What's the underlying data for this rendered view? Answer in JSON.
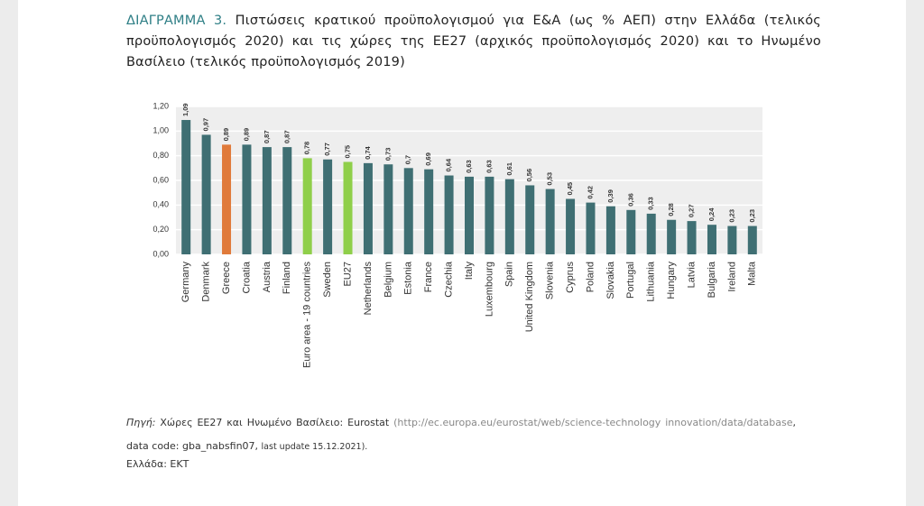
{
  "figure": {
    "label": "ΔΙΑΓΡΑΜΜΑ 3.",
    "title": "Πιστώσεις κρατικού προϋπολογισμού για Ε&Α (ως % ΑΕΠ) στην Ελλάδα (τελικός προϋπολογισμός 2020) και τις χώρες της ΕΕ27 (αρχικός προϋπολογισμός 2020) και το Ηνωμένο Βασίλειο (τελικός προϋπολογισμός 2019)"
  },
  "chart_data": {
    "type": "bar",
    "categories": [
      "Germany",
      "Denmark",
      "Greece",
      "Croatia",
      "Austria",
      "Finland",
      "Euro area - 19 countries",
      "Sweden",
      "EU27",
      "Netherlands",
      "Belgium",
      "Estonia",
      "France",
      "Czechia",
      "Italy",
      "Luxembourg",
      "Spain",
      "United Kingdom",
      "Slovenia",
      "Cyprus",
      "Poland",
      "Slovakia",
      "Portugal",
      "Lithuania",
      "Hungary",
      "Latvia",
      "Bulgaria",
      "Ireland",
      "Malta"
    ],
    "values": [
      1.09,
      0.97,
      0.89,
      0.89,
      0.87,
      0.87,
      0.78,
      0.77,
      0.75,
      0.74,
      0.73,
      0.7,
      0.69,
      0.64,
      0.63,
      0.63,
      0.61,
      0.56,
      0.53,
      0.45,
      0.42,
      0.39,
      0.36,
      0.33,
      0.28,
      0.27,
      0.24,
      0.23,
      0.23
    ],
    "value_labels": [
      "1,09",
      "0,97",
      "0,89",
      "0,89",
      "0,87",
      "0,87",
      "0,78",
      "0,77",
      "0,75",
      "0,74",
      "0,73",
      "0,7",
      "0,69",
      "0,64",
      "0,63",
      "0,63",
      "0,61",
      "0,56",
      "0,53",
      "0,45",
      "0,42",
      "0,39",
      "0,36",
      "0,33",
      "0,28",
      "0,27",
      "0,24",
      "0,23",
      "0,23"
    ],
    "colors": [
      "#3f6f73",
      "#3f6f73",
      "#e07a3a",
      "#3f6f73",
      "#3f6f73",
      "#3f6f73",
      "#8fcf4a",
      "#3f6f73",
      "#8fcf4a",
      "#3f6f73",
      "#3f6f73",
      "#3f6f73",
      "#3f6f73",
      "#3f6f73",
      "#3f6f73",
      "#3f6f73",
      "#3f6f73",
      "#3f6f73",
      "#3f6f73",
      "#3f6f73",
      "#3f6f73",
      "#3f6f73",
      "#3f6f73",
      "#3f6f73",
      "#3f6f73",
      "#3f6f73",
      "#3f6f73",
      "#3f6f73",
      "#3f6f73"
    ],
    "ylim": [
      0,
      1.2
    ],
    "yticks": [
      {
        "value": 0,
        "label": "0,00"
      },
      {
        "value": 0.2,
        "label": "0,20"
      },
      {
        "value": 0.4,
        "label": "0,40"
      },
      {
        "value": 0.6,
        "label": "0,60"
      },
      {
        "value": 0.8,
        "label": "0,80"
      },
      {
        "value": 1,
        "label": "1,00"
      },
      {
        "value": 1.2,
        "label": "1,20"
      }
    ],
    "grid": true
  },
  "source": {
    "label": "Πηγή:",
    "text": "Χώρες ΕΕ27 και Ηνωμένο Βασίλειο: Eurostat",
    "url": "(http://ec.europa.eu/eurostat/web/science-technology innovation/data/database",
    "code": ", data code: gba_nabsfin07,",
    "update": "last update 15.12.2021).",
    "greece": "Ελλάδα: ΕΚΤ"
  }
}
